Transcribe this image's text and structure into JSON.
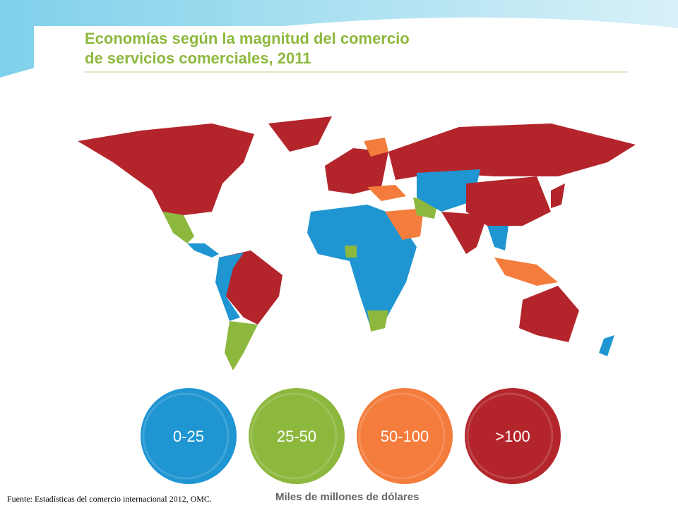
{
  "title_lines": [
    "Economías según la magnitud del comercio",
    "de servicios comerciales, 2011"
  ],
  "legend": [
    {
      "label": "0-25",
      "color": "#1f95d2"
    },
    {
      "label": "25-50",
      "color": "#8db83e"
    },
    {
      "label": "50-100",
      "color": "#f47c3c"
    },
    {
      "label": ">100",
      "color": "#b3252b"
    }
  ],
  "unit_label": "Miles de millones de dólares",
  "source": "Fuente: Estadísticas del comercio internacional 2012, OMC."
}
